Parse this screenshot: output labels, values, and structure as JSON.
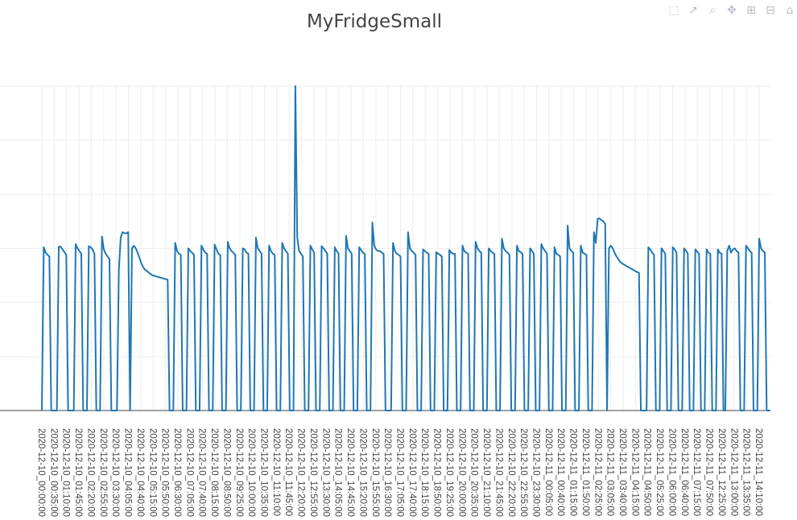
{
  "modebar": {
    "icons": [
      "box-select-icon",
      "autoscale-icon",
      "zoom-icon",
      "pan-icon",
      "zoom-in-icon",
      "zoom-out-icon",
      "home-icon"
    ]
  },
  "chart_data": {
    "type": "line",
    "title": "MyFridgeSmall",
    "xlabel": "",
    "ylabel": "",
    "grid": true,
    "ylim": [
      0,
      6
    ],
    "line_color": "#1f77b4",
    "x_tick_labels": [
      "2020-12-10_00:00:00",
      "2020-12-10_00:35:00",
      "2020-12-10_01:10:00",
      "2020-12-10_01:45:00",
      "2020-12-10_02:20:00",
      "2020-12-10_02:55:00",
      "2020-12-10_03:30:00",
      "2020-12-10_04:05:00",
      "2020-12-10_04:40:00",
      "2020-12-10_05:15:00",
      "2020-12-10_05:50:00",
      "2020-12-10_06:30:00",
      "2020-12-10_07:05:00",
      "2020-12-10_07:40:00",
      "2020-12-10_08:15:00",
      "2020-12-10_08:50:00",
      "2020-12-10_09:25:00",
      "2020-12-10_10:00:00",
      "2020-12-10_10:35:00",
      "2020-12-10_11:10:00",
      "2020-12-10_11:45:00",
      "2020-12-10_12:20:00",
      "2020-12-10_12:55:00",
      "2020-12-10_13:30:00",
      "2020-12-10_14:05:00",
      "2020-12-10_14:45:00",
      "2020-12-10_15:20:00",
      "2020-12-10_15:55:00",
      "2020-12-10_16:30:00",
      "2020-12-10_17:05:00",
      "2020-12-10_17:40:00",
      "2020-12-10_18:15:00",
      "2020-12-10_18:50:00",
      "2020-12-10_19:25:00",
      "2020-12-10_20:00:00",
      "2020-12-10_20:35:00",
      "2020-12-10_21:10:00",
      "2020-12-10_21:45:00",
      "2020-12-10_22:20:00",
      "2020-12-10_22:55:00",
      "2020-12-10_23:30:00",
      "2020-12-11_00:05:00",
      "2020-12-11_00:40:00",
      "2020-12-11_01:15:00",
      "2020-12-11_01:50:00",
      "2020-12-11_02:25:00",
      "2020-12-11_03:05:00",
      "2020-12-11_03:40:00",
      "2020-12-11_04:15:00",
      "2020-12-11_04:50:00",
      "2020-12-11_05:25:00",
      "2020-12-11_06:00:00",
      "2020-12-11_06:40:00",
      "2020-12-11_07:15:00",
      "2020-12-11_07:50:00",
      "2020-12-11_12:25:00",
      "2020-12-11_13:00:00",
      "2020-12-11_13:35:00",
      "2020-12-11_14:10:00"
    ],
    "series": [
      {
        "values": [
          0,
          3.02,
          2.92,
          2.88,
          2.85,
          0,
          0,
          0,
          0,
          3.03,
          3.03,
          2.98,
          2.93,
          2.88,
          0,
          0,
          0,
          0,
          3.08,
          3.0,
          2.95,
          2.9,
          0,
          0,
          0,
          3.04,
          3.02,
          2.98,
          2.9,
          0,
          0,
          0,
          3.22,
          2.98,
          2.9,
          2.85,
          2.8,
          0,
          0,
          0,
          0,
          2.6,
          3.2,
          3.3,
          3.28,
          3.28,
          3.3,
          0,
          3.0,
          3.05,
          3.0,
          2.92,
          2.82,
          2.72,
          2.65,
          2.6,
          2.58,
          2.55,
          2.52,
          2.5,
          2.49,
          2.48,
          2.47,
          2.46,
          2.45,
          2.44,
          2.43,
          2.42,
          0,
          0,
          0,
          3.1,
          2.95,
          2.9,
          2.88,
          0,
          0,
          0,
          3.0,
          2.95,
          2.92,
          2.88,
          0,
          0,
          0,
          3.05,
          2.98,
          2.92,
          2.9,
          0,
          0,
          0,
          3.07,
          2.98,
          2.9,
          2.88,
          0,
          0,
          0,
          3.12,
          3.0,
          2.95,
          2.92,
          2.88,
          0,
          0,
          0,
          3.0,
          2.98,
          2.92,
          2.9,
          0,
          0,
          0,
          3.2,
          3.0,
          2.95,
          2.9,
          0,
          0,
          0,
          3.05,
          2.95,
          2.9,
          2.88,
          0,
          0,
          0,
          3.1,
          3.0,
          2.95,
          2.9,
          0,
          0,
          0,
          6.0,
          3.2,
          2.95,
          2.9,
          2.85,
          0,
          0,
          0,
          3.05,
          2.98,
          2.92,
          0,
          0,
          0,
          3.04,
          3.0,
          2.95,
          2.9,
          0,
          0,
          0,
          3.02,
          2.95,
          2.9,
          0,
          0,
          0,
          3.23,
          3.0,
          2.95,
          2.9,
          0,
          0,
          0,
          3.02,
          2.97,
          2.92,
          2.9,
          0,
          0,
          0,
          3.48,
          3.05,
          2.98,
          2.95,
          2.95,
          2.92,
          2.9,
          0,
          0,
          0,
          0,
          3.1,
          2.95,
          2.9,
          2.88,
          2.85,
          0,
          0,
          0,
          3.3,
          3.0,
          2.95,
          2.92,
          2.88,
          0,
          0,
          0,
          2.98,
          2.95,
          2.92,
          2.9,
          0,
          0,
          0,
          2.93,
          2.9,
          2.88,
          2.85,
          0,
          0,
          0,
          2.97,
          2.92,
          2.9,
          2.9,
          0,
          0,
          0,
          3.05,
          2.95,
          2.92,
          2.9,
          0,
          0,
          0,
          3.12,
          3.0,
          2.95,
          2.92,
          0,
          0,
          0,
          3.0,
          2.95,
          2.92,
          2.9,
          0,
          0,
          0,
          3.18,
          3.0,
          2.95,
          2.92,
          2.88,
          0,
          0,
          0,
          3.05,
          2.95,
          2.93,
          2.9,
          0,
          0,
          0,
          3.0,
          2.95,
          2.9,
          0,
          0,
          0,
          3.08,
          3.0,
          2.95,
          2.9,
          0,
          0,
          0,
          3.02,
          2.9,
          2.88,
          2.85,
          0,
          0,
          0,
          3.42,
          3.0,
          2.95,
          2.92,
          0,
          0,
          0,
          3.05,
          2.92,
          2.9,
          2.88,
          0,
          0,
          0,
          3.3,
          3.1,
          3.55,
          3.55,
          3.52,
          3.5,
          3.45,
          0,
          3.0,
          3.05,
          3.0,
          2.92,
          2.85,
          2.8,
          2.75,
          2.72,
          2.7,
          2.68,
          2.66,
          2.64,
          2.62,
          2.6,
          2.58,
          2.56,
          2.55,
          0,
          0,
          0,
          0,
          3.02,
          2.98,
          2.92,
          2.88,
          0,
          0,
          0,
          3.0,
          2.95,
          2.9,
          0,
          0,
          0,
          3.02,
          2.98,
          2.92,
          0,
          0,
          0,
          3.0,
          2.96,
          2.9,
          0,
          0,
          0,
          2.98,
          2.94,
          2.9,
          0,
          0,
          0,
          2.98,
          2.92,
          2.9,
          0,
          0,
          0,
          2.98,
          2.92,
          2.9,
          0,
          0,
          2.95,
          3.05,
          2.92,
          2.98,
          3.0,
          2.95,
          2.92,
          0,
          0,
          0,
          3.05,
          3.0,
          2.95,
          2.92,
          0,
          0,
          0,
          3.18,
          3.0,
          2.95,
          2.92,
          0,
          0,
          0
        ]
      }
    ]
  }
}
